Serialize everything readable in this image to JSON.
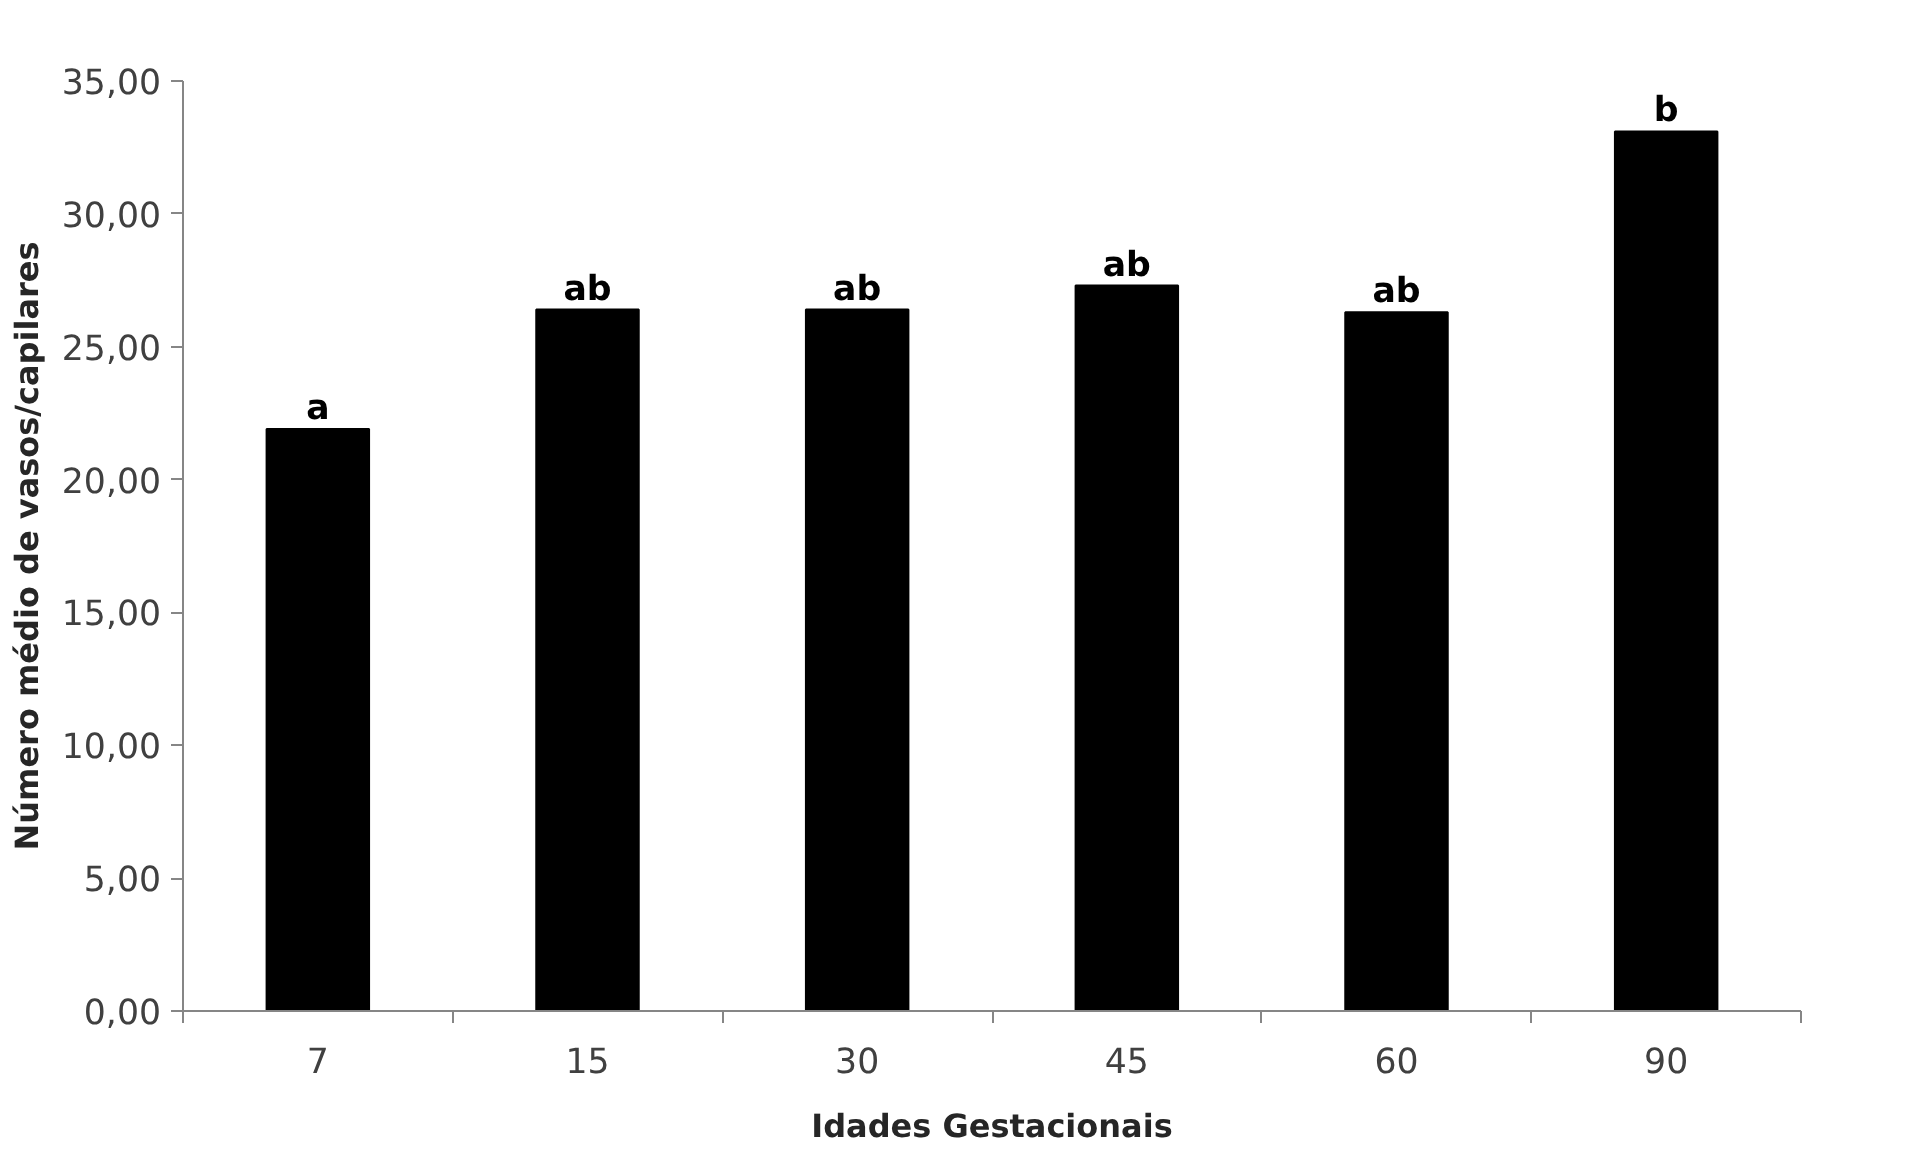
{
  "chart_data": {
    "type": "bar",
    "xlabel": "Idades Gestacionais",
    "ylabel": "Número médio de vasos/capilares",
    "categories": [
      "7",
      "15",
      "30",
      "45",
      "60",
      "90"
    ],
    "values": [
      21.9,
      26.4,
      26.4,
      27.3,
      26.3,
      33.1
    ],
    "color": "#000000",
    "ylim": [
      0,
      35
    ],
    "yticks": [
      {
        "value": 0,
        "label": "0,00"
      },
      {
        "value": 5,
        "label": "5,00"
      },
      {
        "value": 10,
        "label": "10,00"
      },
      {
        "value": 15,
        "label": "15,00"
      },
      {
        "value": 20,
        "label": "20,00"
      },
      {
        "value": 25,
        "label": "25,00"
      },
      {
        "value": 30,
        "label": "30,00"
      },
      {
        "value": 35,
        "label": "35,00"
      }
    ],
    "grid": false,
    "annotations": [
      {
        "text": "a",
        "x": "7",
        "y": 21.9
      },
      {
        "text": "ab",
        "x": "15",
        "y": 26.4
      },
      {
        "text": "ab",
        "x": "30",
        "y": 26.4
      },
      {
        "text": "ab",
        "x": "45",
        "y": 27.3
      },
      {
        "text": "ab",
        "x": "60",
        "y": 26.3
      },
      {
        "text": "b",
        "x": "90",
        "y": 33.1
      }
    ]
  }
}
